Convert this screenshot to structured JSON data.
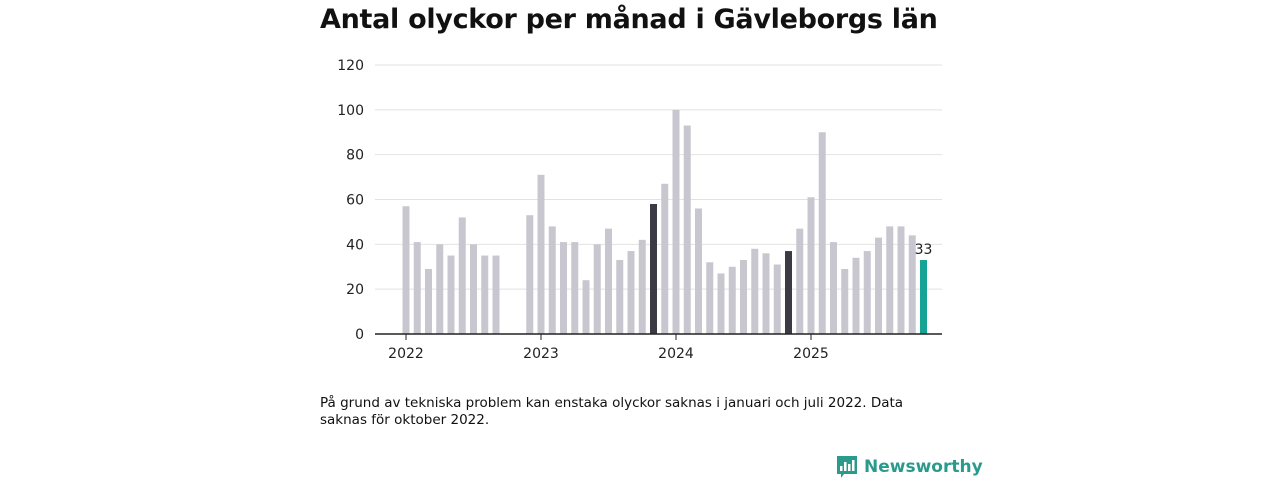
{
  "title": "Antal olyckor per månad i Gävleborgs län",
  "note": "På grund av tekniska problem kan enstaka olyckor saknas i januari och juli 2022. Data saknas för oktober 2022.",
  "brand": {
    "name": "Newsworthy"
  },
  "colors": {
    "default": "#c8c7cf",
    "highlight": "#3c3b45",
    "latest": "#14a394",
    "grid": "#e2e2e2",
    "axis": "#222222"
  },
  "chart_data": {
    "type": "bar",
    "title": "Antal olyckor per månad i Gävleborgs län",
    "xlabel": "",
    "ylabel": "",
    "ylim": [
      0,
      120
    ],
    "yticks": [
      0,
      20,
      40,
      60,
      80,
      100,
      120
    ],
    "year_labels": [
      "2022",
      "2023",
      "2024",
      "2025"
    ],
    "series": [
      {
        "year": "2022",
        "values": [
          57,
          41,
          29,
          40,
          35,
          52,
          40,
          35,
          35,
          null,
          0,
          53
        ],
        "highlight": []
      },
      {
        "year": "2023",
        "values": [
          71,
          48,
          41,
          41,
          24,
          40,
          47,
          33,
          37,
          42,
          58,
          67
        ],
        "highlight": [
          10
        ]
      },
      {
        "year": "2024",
        "values": [
          100,
          93,
          56,
          32,
          27,
          30,
          33,
          38,
          36,
          31,
          37,
          47
        ],
        "highlight": [
          10
        ]
      },
      {
        "year": "2025",
        "values": [
          61,
          90,
          41,
          29,
          34,
          37,
          43,
          48,
          48,
          44,
          33
        ],
        "highlight": []
      }
    ],
    "latest_label": "33"
  }
}
